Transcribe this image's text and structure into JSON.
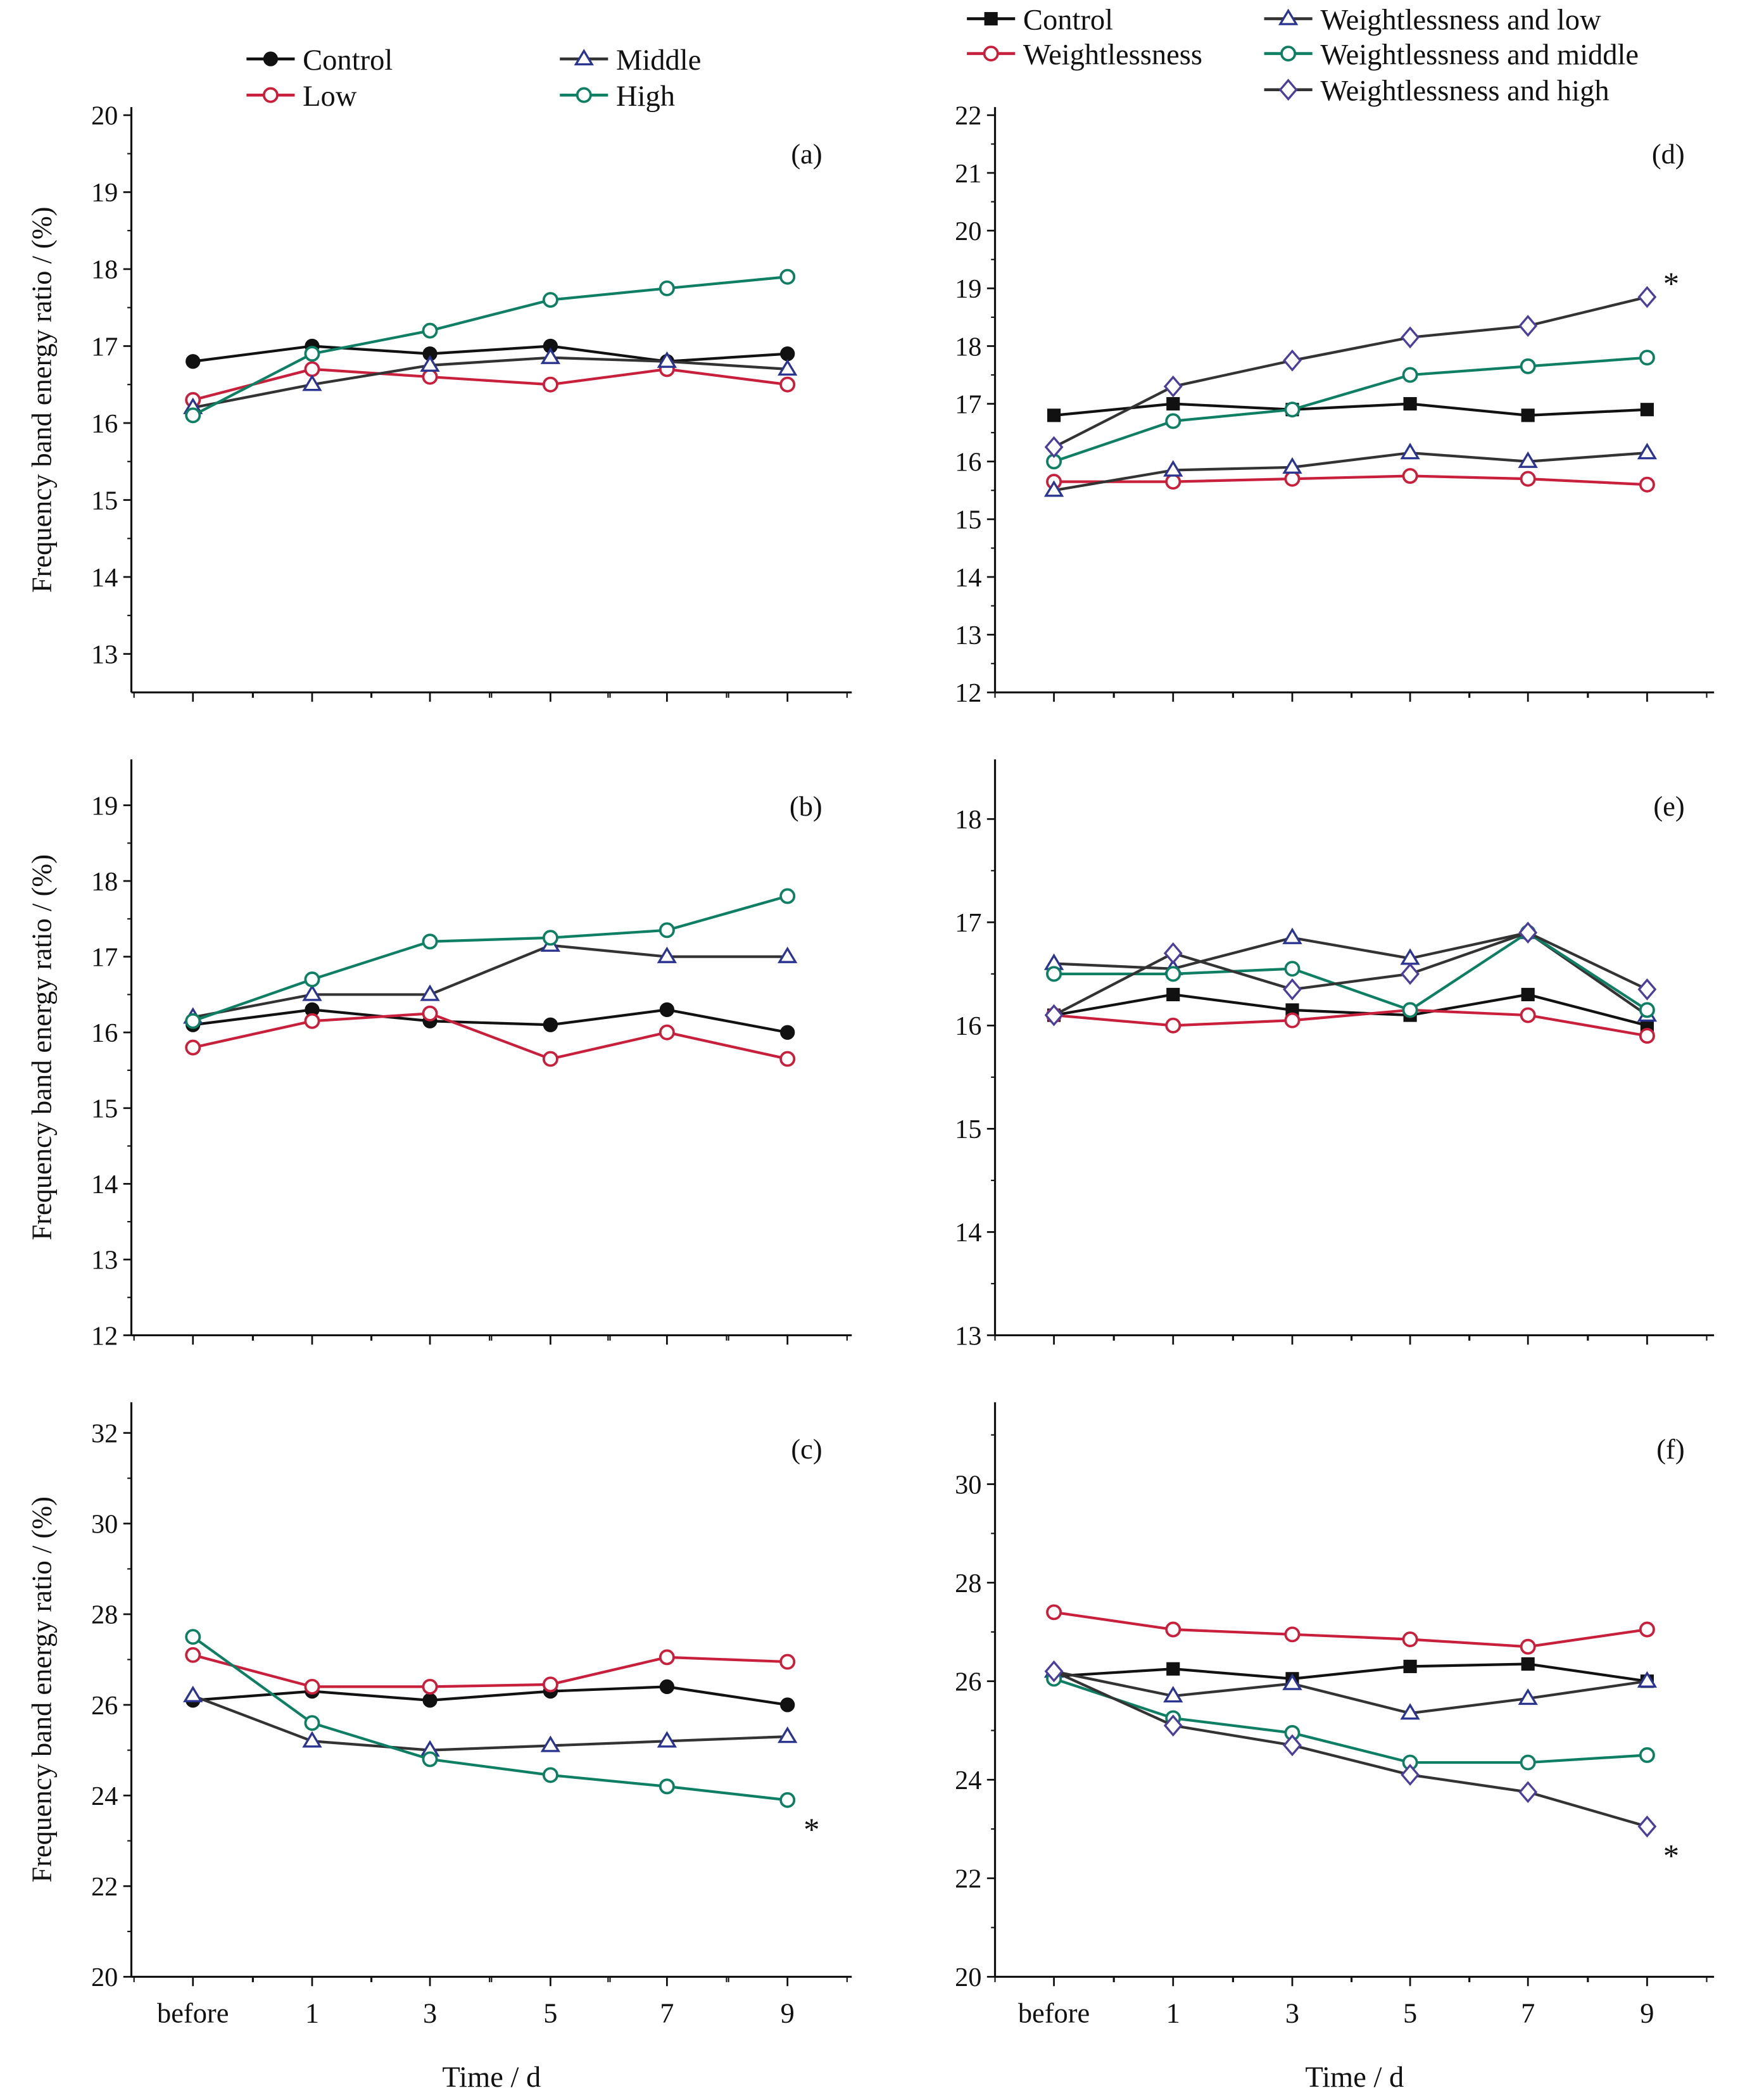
{
  "colors": {
    "black": "#111111",
    "red": "#c8203c",
    "blue": "#2b3590",
    "green": "#0f7f63",
    "purple": "#4b3f9a"
  },
  "legends": {
    "left": [
      {
        "name": "Control",
        "marker": "circle-filled",
        "color": "#111111"
      },
      {
        "name": "Low",
        "marker": "circle-open",
        "color": "#c8203c"
      },
      {
        "name": "Middle",
        "marker": "triangle",
        "color": "#2b3590"
      },
      {
        "name": "High",
        "marker": "circle-open",
        "color": "#0f7f63"
      }
    ],
    "right": [
      {
        "name": "Control",
        "marker": "square-filled",
        "color": "#111111"
      },
      {
        "name": "Weightlessness",
        "marker": "circle-open",
        "color": "#c8203c"
      },
      {
        "name": "Weightlessness and low",
        "marker": "triangle",
        "color": "#2b3590"
      },
      {
        "name": "Weightlessness and middle",
        "marker": "circle-open",
        "color": "#0f7f63"
      },
      {
        "name": "Weightlessness and high",
        "marker": "diamond",
        "color": "#4b3f9a"
      }
    ]
  },
  "chart_data": [
    {
      "type": "line",
      "panel_label": "(a)",
      "categories": [
        "before",
        "1",
        "3",
        "5",
        "7",
        "9"
      ],
      "ylabel": "Frequency band energy ratio / (%)",
      "xlabel": "",
      "ylim": [
        12.5,
        20
      ],
      "yticks": [
        13,
        14,
        15,
        16,
        17,
        18,
        19,
        20
      ],
      "grid": false,
      "series": [
        {
          "name": "Control",
          "values": [
            16.8,
            17.0,
            16.9,
            17.0,
            16.8,
            16.9
          ]
        },
        {
          "name": "Low",
          "values": [
            16.3,
            16.7,
            16.6,
            16.5,
            16.7,
            16.5
          ]
        },
        {
          "name": "Middle",
          "values": [
            16.2,
            16.5,
            16.75,
            16.85,
            16.8,
            16.7
          ]
        },
        {
          "name": "High",
          "values": [
            16.1,
            16.9,
            17.2,
            17.6,
            17.75,
            17.9
          ]
        }
      ]
    },
    {
      "type": "line",
      "panel_label": "(b)",
      "categories": [
        "before",
        "1",
        "3",
        "5",
        "7",
        "9"
      ],
      "ylabel": "Frequency band energy ratio / (%)",
      "xlabel": "",
      "ylim": [
        12,
        19.5
      ],
      "yticks": [
        12,
        13,
        14,
        15,
        16,
        17,
        18,
        19
      ],
      "grid": false,
      "series": [
        {
          "name": "Control",
          "values": [
            16.1,
            16.3,
            16.15,
            16.1,
            16.3,
            16.0
          ]
        },
        {
          "name": "Low",
          "values": [
            15.8,
            16.15,
            16.25,
            15.65,
            16.0,
            15.65
          ]
        },
        {
          "name": "Middle",
          "values": [
            16.2,
            16.5,
            16.5,
            17.15,
            17.0,
            17.0
          ]
        },
        {
          "name": "High",
          "values": [
            16.15,
            16.7,
            17.2,
            17.25,
            17.35,
            17.8
          ]
        }
      ]
    },
    {
      "type": "line",
      "panel_label": "(c)",
      "categories": [
        "before",
        "1",
        "3",
        "5",
        "7",
        "9"
      ],
      "ylabel": "Frequency band energy ratio / (%)",
      "xlabel": "Time / d",
      "ylim": [
        20,
        32.5
      ],
      "yticks": [
        20,
        22,
        24,
        26,
        28,
        30,
        32
      ],
      "grid": false,
      "series": [
        {
          "name": "Control",
          "values": [
            26.1,
            26.3,
            26.1,
            26.3,
            26.4,
            26.0
          ]
        },
        {
          "name": "Low",
          "values": [
            27.1,
            26.4,
            26.4,
            26.45,
            27.05,
            26.95
          ]
        },
        {
          "name": "Middle",
          "values": [
            26.2,
            25.2,
            25.0,
            25.1,
            25.2,
            25.3
          ]
        },
        {
          "name": "High",
          "values": [
            27.5,
            25.6,
            24.8,
            24.45,
            24.2,
            23.9
          ]
        }
      ],
      "annotations": [
        {
          "series": "High",
          "category": "9",
          "text": "*"
        }
      ]
    },
    {
      "type": "line",
      "panel_label": "(d)",
      "categories": [
        "before",
        "1",
        "3",
        "5",
        "7",
        "9"
      ],
      "ylabel": "",
      "xlabel": "",
      "ylim": [
        12,
        22
      ],
      "yticks": [
        12,
        13,
        14,
        15,
        16,
        17,
        18,
        19,
        20,
        21,
        22
      ],
      "grid": false,
      "series": [
        {
          "name": "Control",
          "values": [
            16.8,
            17.0,
            16.9,
            17.0,
            16.8,
            16.9
          ]
        },
        {
          "name": "Weightlessness",
          "values": [
            15.65,
            15.65,
            15.7,
            15.75,
            15.7,
            15.6
          ]
        },
        {
          "name": "Weightlessness and low",
          "values": [
            15.5,
            15.85,
            15.9,
            16.15,
            16.0,
            16.15
          ]
        },
        {
          "name": "Weightlessness and middle",
          "values": [
            16.0,
            16.7,
            16.9,
            17.5,
            17.65,
            17.8
          ]
        },
        {
          "name": "Weightlessness and high",
          "values": [
            16.25,
            17.3,
            17.75,
            18.15,
            18.35,
            18.85
          ]
        }
      ],
      "annotations": [
        {
          "series": "Weightlessness and high",
          "category": "9",
          "text": "*"
        }
      ]
    },
    {
      "type": "line",
      "panel_label": "(e)",
      "categories": [
        "before",
        "1",
        "3",
        "5",
        "7",
        "9"
      ],
      "ylabel": "",
      "xlabel": "",
      "ylim": [
        13,
        18.5
      ],
      "yticks": [
        13,
        14,
        15,
        16,
        17,
        18
      ],
      "grid": false,
      "series": [
        {
          "name": "Control",
          "values": [
            16.1,
            16.3,
            16.15,
            16.1,
            16.3,
            16.0
          ]
        },
        {
          "name": "Weightlessness",
          "values": [
            16.1,
            16.0,
            16.05,
            16.15,
            16.1,
            15.9
          ]
        },
        {
          "name": "Weightlessness and low",
          "values": [
            16.6,
            16.55,
            16.85,
            16.65,
            16.9,
            16.1
          ]
        },
        {
          "name": "Weightlessness and middle",
          "values": [
            16.5,
            16.5,
            16.55,
            16.15,
            16.9,
            16.15
          ]
        },
        {
          "name": "Weightlessness and high",
          "values": [
            16.1,
            16.7,
            16.35,
            16.5,
            16.9,
            16.35
          ]
        }
      ]
    },
    {
      "type": "line",
      "panel_label": "(f)",
      "categories": [
        "before",
        "1",
        "3",
        "5",
        "7",
        "9"
      ],
      "ylabel": "",
      "xlabel": "Time / d",
      "ylim": [
        20,
        31.5
      ],
      "yticks": [
        20,
        22,
        24,
        26,
        28,
        30
      ],
      "grid": false,
      "series": [
        {
          "name": "Control",
          "values": [
            26.1,
            26.25,
            26.05,
            26.3,
            26.35,
            26.0
          ]
        },
        {
          "name": "Weightlessness",
          "values": [
            27.4,
            27.05,
            26.95,
            26.85,
            26.7,
            27.05
          ]
        },
        {
          "name": "Weightlessness and low",
          "values": [
            26.2,
            25.7,
            25.95,
            25.35,
            25.65,
            26.0
          ]
        },
        {
          "name": "Weightlessness and middle",
          "values": [
            26.05,
            25.25,
            24.95,
            24.35,
            24.35,
            24.5
          ]
        },
        {
          "name": "Weightlessness and high",
          "values": [
            26.2,
            25.1,
            24.7,
            24.1,
            23.75,
            23.05
          ]
        }
      ],
      "annotations": [
        {
          "series": "Weightlessness and high",
          "category": "9",
          "text": "*"
        }
      ]
    }
  ]
}
